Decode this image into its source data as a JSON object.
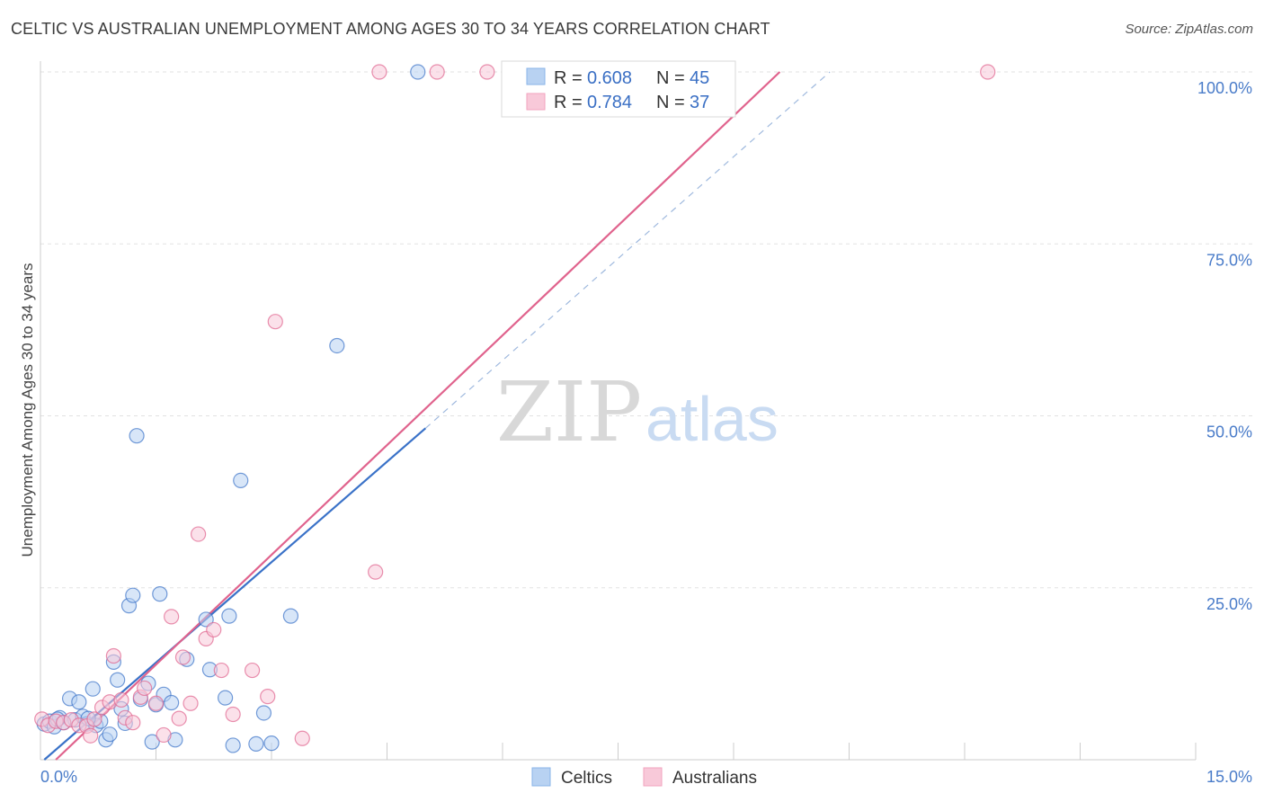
{
  "header": {
    "title": "CELTIC VS AUSTRALIAN UNEMPLOYMENT AMONG AGES 30 TO 34 YEARS CORRELATION CHART",
    "source": "Source: ZipAtlas.com"
  },
  "watermark": {
    "zip": "ZIP",
    "atlas": "atlas"
  },
  "legend": {
    "celtic": {
      "r_label": "R = ",
      "r_value": "0.608",
      "n_label": "N = ",
      "n_value": "45",
      "color": "#8ab4e8"
    },
    "australian": {
      "r_label": "R = ",
      "r_value": "0.784",
      "n_label": "N = ",
      "n_value": "37",
      "color": "#f2a3be"
    }
  },
  "bottom_legend": {
    "celtics": "Celtics",
    "australians": "Australians"
  },
  "chart_data": {
    "type": "scatter",
    "title": "CELTIC VS AUSTRALIAN UNEMPLOYMENT AMONG AGES 30 TO 34 YEARS CORRELATION CHART",
    "xlabel": "",
    "ylabel": "Unemployment Among Ages 30 to 34 years",
    "xlim": [
      0,
      15
    ],
    "ylim": [
      0,
      100
    ],
    "x_tick_labels": [
      "0.0%",
      "15.0%"
    ],
    "y_tick_labels": [
      "100.0%",
      "75.0%",
      "50.0%",
      "25.0%"
    ],
    "y_tick_values": [
      100,
      75,
      50,
      25
    ],
    "grid": true,
    "series": [
      {
        "name": "Celtics",
        "color": "#3a72c8",
        "fill": "#b8d2f2",
        "points": [
          [
            0.05,
            5.2
          ],
          [
            0.12,
            5.6
          ],
          [
            0.18,
            4.8
          ],
          [
            0.25,
            6.1
          ],
          [
            0.3,
            5.4
          ],
          [
            0.38,
            8.9
          ],
          [
            0.45,
            5.8
          ],
          [
            0.5,
            8.4
          ],
          [
            0.55,
            6.3
          ],
          [
            0.6,
            5.2
          ],
          [
            0.68,
            10.3
          ],
          [
            0.72,
            5.0
          ],
          [
            0.78,
            5.6
          ],
          [
            0.85,
            2.9
          ],
          [
            0.9,
            3.7
          ],
          [
            0.95,
            14.2
          ],
          [
            1.0,
            11.6
          ],
          [
            1.05,
            7.4
          ],
          [
            1.1,
            5.3
          ],
          [
            1.15,
            22.4
          ],
          [
            1.2,
            23.9
          ],
          [
            1.25,
            47.1
          ],
          [
            1.4,
            11.1
          ],
          [
            1.45,
            2.6
          ],
          [
            1.5,
            8.0
          ],
          [
            1.55,
            24.1
          ],
          [
            1.6,
            9.5
          ],
          [
            1.7,
            8.3
          ],
          [
            1.75,
            2.9
          ],
          [
            1.9,
            14.6
          ],
          [
            2.15,
            20.4
          ],
          [
            2.2,
            13.1
          ],
          [
            2.4,
            9.0
          ],
          [
            2.45,
            20.9
          ],
          [
            2.5,
            2.1
          ],
          [
            2.6,
            40.6
          ],
          [
            2.8,
            2.3
          ],
          [
            2.9,
            6.8
          ],
          [
            3.0,
            2.4
          ],
          [
            3.25,
            20.9
          ],
          [
            3.85,
            60.2
          ],
          [
            4.9,
            100.0
          ],
          [
            0.22,
            5.9
          ],
          [
            0.62,
            6.0
          ],
          [
            1.3,
            8.8
          ]
        ]
      },
      {
        "name": "Australians",
        "color": "#e0638d",
        "fill": "#f8c9d9",
        "points": [
          [
            0.02,
            5.9
          ],
          [
            0.1,
            5.0
          ],
          [
            0.2,
            5.6
          ],
          [
            0.3,
            5.4
          ],
          [
            0.4,
            5.8
          ],
          [
            0.5,
            5.0
          ],
          [
            0.6,
            4.9
          ],
          [
            0.65,
            3.5
          ],
          [
            0.7,
            5.9
          ],
          [
            0.8,
            7.6
          ],
          [
            0.9,
            8.4
          ],
          [
            0.95,
            15.1
          ],
          [
            1.05,
            8.7
          ],
          [
            1.1,
            6.1
          ],
          [
            1.2,
            5.4
          ],
          [
            1.3,
            9.1
          ],
          [
            1.35,
            10.4
          ],
          [
            1.5,
            8.2
          ],
          [
            1.6,
            3.6
          ],
          [
            1.7,
            20.8
          ],
          [
            1.8,
            6.0
          ],
          [
            1.85,
            14.9
          ],
          [
            1.95,
            8.2
          ],
          [
            2.05,
            32.8
          ],
          [
            2.15,
            17.6
          ],
          [
            2.25,
            18.9
          ],
          [
            2.35,
            13.0
          ],
          [
            2.5,
            6.6
          ],
          [
            2.75,
            13.0
          ],
          [
            2.95,
            9.2
          ],
          [
            3.05,
            63.7
          ],
          [
            3.4,
            3.1
          ],
          [
            4.35,
            27.3
          ],
          [
            4.4,
            100.0
          ],
          [
            5.15,
            100.0
          ],
          [
            5.8,
            100.0
          ],
          [
            12.3,
            100.0
          ]
        ]
      }
    ],
    "trend_lines": [
      {
        "series": "Celtics",
        "x0": 0.05,
        "y0": 0.0,
        "x1": 5.0,
        "y1": 48.2,
        "dashed_extension_to": [
          10.25,
          100.0
        ]
      },
      {
        "series": "Australians",
        "x0": 0.2,
        "y0": 0.0,
        "x1": 9.6,
        "y1": 100.0
      }
    ]
  }
}
